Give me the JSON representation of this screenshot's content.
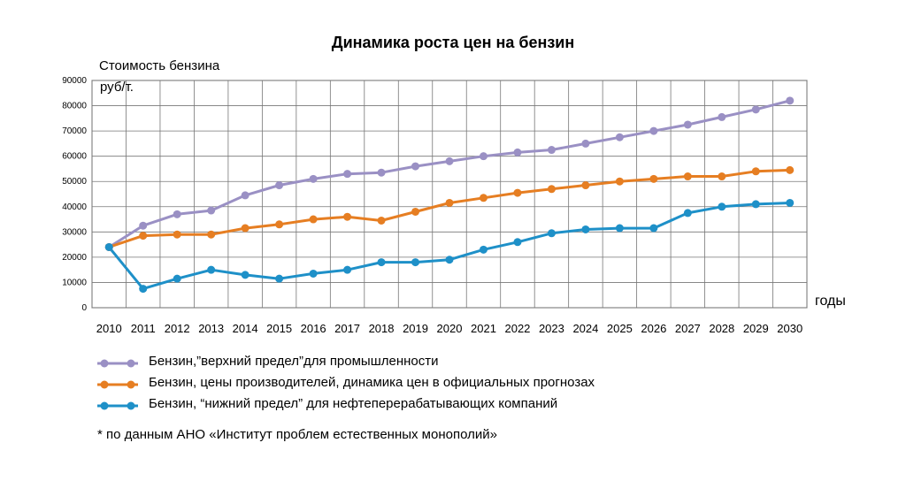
{
  "chart_data": {
    "type": "line",
    "title": "Динамика роста цен на бензин",
    "ylabel_line1": "Стоимость бензина",
    "ylabel_line2": "руб/т.",
    "xlabel": "годы",
    "x": [
      "2010",
      "2011",
      "2012",
      "2013",
      "2014",
      "2015",
      "2016",
      "2017",
      "2018",
      "2019",
      "2020",
      "2021",
      "2022",
      "2023",
      "2024",
      "2025",
      "2026",
      "2027",
      "2028",
      "2029",
      "2030"
    ],
    "yticks": [
      0,
      10000,
      20000,
      30000,
      40000,
      50000,
      60000,
      70000,
      80000,
      90000
    ],
    "ylim": [
      0,
      90000
    ],
    "grid": true,
    "legend_position": "bottom",
    "series": [
      {
        "name": "Бензин,”верхний предел”для промышленности",
        "color": "#9a90c4",
        "values": [
          24000,
          32500,
          37000,
          38500,
          44500,
          48500,
          51000,
          53000,
          53500,
          56000,
          58000,
          60000,
          61500,
          62500,
          65000,
          67500,
          70000,
          72500,
          75500,
          78500,
          82000
        ]
      },
      {
        "name": "Бензин,  цены производителей, динамика цен в официальных прогнозах",
        "color": "#e67e22",
        "values": [
          24000,
          28500,
          29000,
          29000,
          31500,
          33000,
          35000,
          36000,
          34500,
          38000,
          41500,
          43500,
          45500,
          47000,
          48500,
          50000,
          51000,
          52000,
          52000,
          54000,
          54500
        ]
      },
      {
        "name": "Бензин, “нижний предел” для нефтеперерабатывающих компаний",
        "color": "#1e90c8",
        "values": [
          24000,
          7500,
          11500,
          15000,
          13000,
          11500,
          13500,
          15000,
          18000,
          18000,
          19000,
          23000,
          26000,
          29500,
          31000,
          31500,
          31500,
          37500,
          40000,
          41000,
          41500
        ]
      }
    ],
    "footnote": "* по данным АНО «Институт проблем естественных монополий»"
  }
}
